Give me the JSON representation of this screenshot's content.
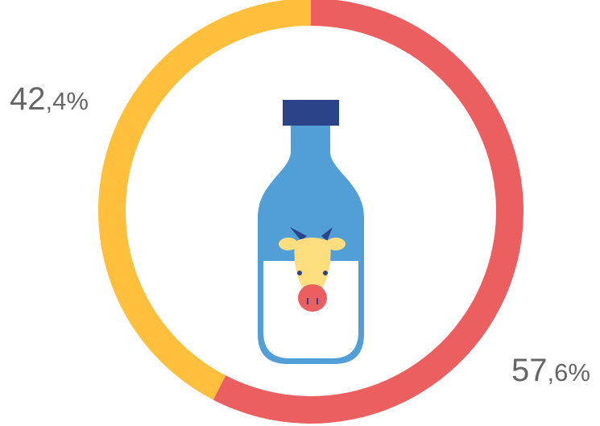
{
  "chart_data": {
    "type": "pie",
    "categories": [
      "",
      ""
    ],
    "values": [
      57.6,
      42.4
    ],
    "colors": [
      "#EC5F61",
      "#FDBF3C"
    ],
    "labels": [
      {
        "int": "57",
        "dec": ",6%"
      },
      {
        "int": "42",
        "dec": ",4%"
      }
    ],
    "center_icon": "milk-bottle-with-cow-icon",
    "legend": "none",
    "grid": false
  },
  "bottle_colors": {
    "cap": "#2B4389",
    "body": "#529FD8",
    "milk": "#FFFFFF",
    "cow_face": "#FDDD7E",
    "cow_nose": "#EC5F61",
    "horns": "#2B4389"
  }
}
